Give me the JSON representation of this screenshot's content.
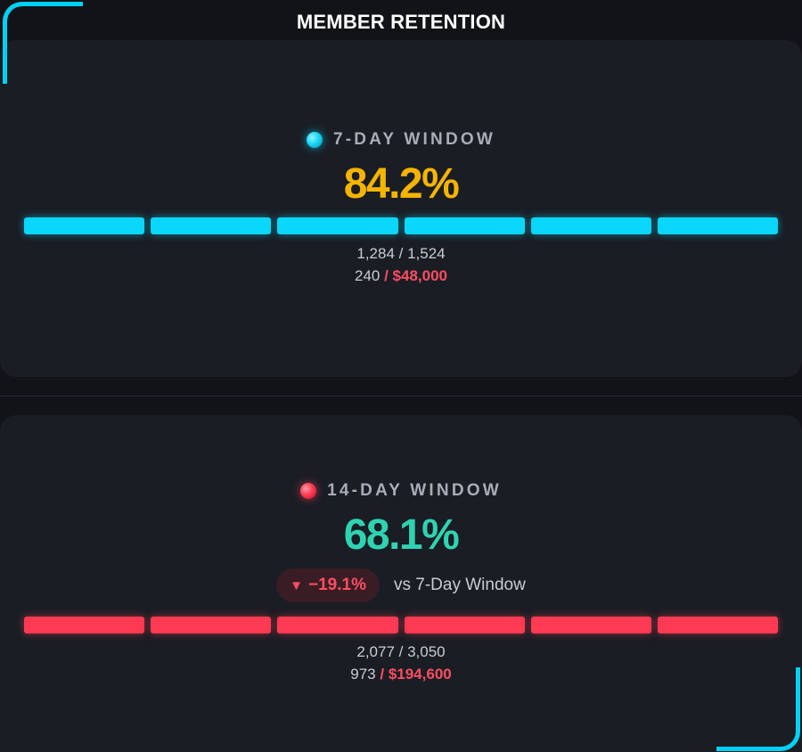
{
  "header": {
    "title": "MEMBER RETENTION"
  },
  "colors": {
    "cyan_accent": "#0bd6fb",
    "red_accent": "#ff3a52",
    "amber_value": "#f5b400",
    "teal_value": "#2fd3b2",
    "background": "#111317",
    "card": "#1a1d24"
  },
  "windows": [
    {
      "label": "7-DAY WINDOW",
      "indicator": "cyan-dot-icon",
      "percent": "84.2%",
      "bar_segments_filled": 6,
      "bar_segments_total": 6,
      "ratio": "1,284 / 1,524",
      "count": "240",
      "amount": "/ $48,000"
    },
    {
      "label": "14-DAY WINDOW",
      "indicator": "red-dot-icon",
      "percent": "68.1%",
      "delta": {
        "arrow": "▼",
        "value": "−19.1%",
        "comparison": "vs 7-Day Window"
      },
      "bar_segments_filled": 6,
      "bar_segments_total": 6,
      "ratio": "2,077 / 3,050",
      "count": "973",
      "amount": "/ $194,600"
    }
  ]
}
